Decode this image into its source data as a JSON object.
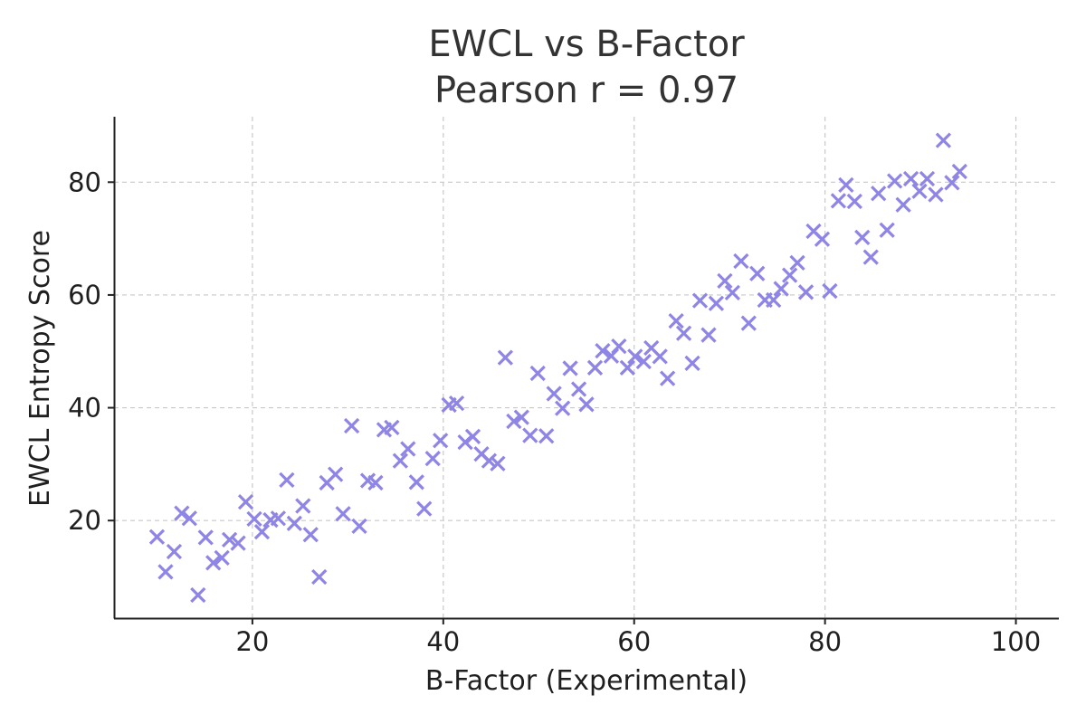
{
  "chart_data": {
    "type": "scatter",
    "title": "EWCL vs B-Factor",
    "subtitle": "Pearson r = 0.97",
    "xlabel": "B-Factor (Experimental)",
    "ylabel": "EWCL Entropy Score",
    "xlim": [
      5.5,
      104.5
    ],
    "ylim": [
      2.7,
      91.6
    ],
    "xticks": [
      20,
      40,
      60,
      80,
      100
    ],
    "yticks": [
      20,
      40,
      60,
      80
    ],
    "grid": true,
    "marker": "x",
    "color": "#8f85e6",
    "points": [
      {
        "x": 10.0,
        "y": 17.1
      },
      {
        "x": 10.9,
        "y": 10.9
      },
      {
        "x": 11.8,
        "y": 14.5
      },
      {
        "x": 12.6,
        "y": 21.3
      },
      {
        "x": 13.4,
        "y": 20.4
      },
      {
        "x": 14.3,
        "y": 6.8
      },
      {
        "x": 15.1,
        "y": 17.0
      },
      {
        "x": 15.9,
        "y": 12.5
      },
      {
        "x": 16.8,
        "y": 13.4
      },
      {
        "x": 17.6,
        "y": 16.6
      },
      {
        "x": 18.5,
        "y": 16.0
      },
      {
        "x": 19.3,
        "y": 23.3
      },
      {
        "x": 20.2,
        "y": 20.3
      },
      {
        "x": 21.0,
        "y": 18.0
      },
      {
        "x": 21.9,
        "y": 20.1
      },
      {
        "x": 22.7,
        "y": 20.4
      },
      {
        "x": 23.6,
        "y": 27.2
      },
      {
        "x": 24.4,
        "y": 19.5
      },
      {
        "x": 25.3,
        "y": 22.6
      },
      {
        "x": 26.1,
        "y": 17.5
      },
      {
        "x": 27.0,
        "y": 10.0
      },
      {
        "x": 27.8,
        "y": 26.7
      },
      {
        "x": 28.7,
        "y": 28.2
      },
      {
        "x": 29.5,
        "y": 21.2
      },
      {
        "x": 30.4,
        "y": 36.8
      },
      {
        "x": 31.2,
        "y": 19.0
      },
      {
        "x": 32.1,
        "y": 27.1
      },
      {
        "x": 32.9,
        "y": 26.7
      },
      {
        "x": 33.8,
        "y": 36.1
      },
      {
        "x": 34.6,
        "y": 36.5
      },
      {
        "x": 35.5,
        "y": 30.6
      },
      {
        "x": 36.3,
        "y": 32.7
      },
      {
        "x": 37.2,
        "y": 26.8
      },
      {
        "x": 38.0,
        "y": 22.1
      },
      {
        "x": 38.9,
        "y": 31.0
      },
      {
        "x": 39.7,
        "y": 34.2
      },
      {
        "x": 40.6,
        "y": 40.5
      },
      {
        "x": 41.4,
        "y": 40.8
      },
      {
        "x": 42.3,
        "y": 33.9
      },
      {
        "x": 43.1,
        "y": 34.9
      },
      {
        "x": 44.0,
        "y": 31.8
      },
      {
        "x": 44.8,
        "y": 30.6
      },
      {
        "x": 45.7,
        "y": 30.1
      },
      {
        "x": 46.5,
        "y": 48.9
      },
      {
        "x": 47.4,
        "y": 37.6
      },
      {
        "x": 48.2,
        "y": 38.3
      },
      {
        "x": 49.1,
        "y": 35.1
      },
      {
        "x": 49.9,
        "y": 46.1
      },
      {
        "x": 50.8,
        "y": 35.0
      },
      {
        "x": 51.6,
        "y": 42.5
      },
      {
        "x": 52.5,
        "y": 39.9
      },
      {
        "x": 53.3,
        "y": 47.0
      },
      {
        "x": 54.2,
        "y": 43.3
      },
      {
        "x": 55.0,
        "y": 40.6
      },
      {
        "x": 55.9,
        "y": 47.1
      },
      {
        "x": 56.7,
        "y": 50.1
      },
      {
        "x": 57.6,
        "y": 49.2
      },
      {
        "x": 58.4,
        "y": 50.9
      },
      {
        "x": 59.3,
        "y": 47.1
      },
      {
        "x": 60.1,
        "y": 49.1
      },
      {
        "x": 61.0,
        "y": 48.2
      },
      {
        "x": 61.8,
        "y": 50.6
      },
      {
        "x": 62.7,
        "y": 49.1
      },
      {
        "x": 63.5,
        "y": 45.2
      },
      {
        "x": 64.4,
        "y": 55.4
      },
      {
        "x": 65.2,
        "y": 53.2
      },
      {
        "x": 66.1,
        "y": 47.9
      },
      {
        "x": 66.9,
        "y": 59.0
      },
      {
        "x": 67.8,
        "y": 52.9
      },
      {
        "x": 68.6,
        "y": 58.5
      },
      {
        "x": 69.5,
        "y": 62.5
      },
      {
        "x": 70.3,
        "y": 60.4
      },
      {
        "x": 71.2,
        "y": 66.0
      },
      {
        "x": 72.0,
        "y": 55.0
      },
      {
        "x": 72.9,
        "y": 63.8
      },
      {
        "x": 73.7,
        "y": 59.1
      },
      {
        "x": 74.6,
        "y": 59.1
      },
      {
        "x": 75.4,
        "y": 61.1
      },
      {
        "x": 76.3,
        "y": 63.5
      },
      {
        "x": 77.1,
        "y": 65.7
      },
      {
        "x": 78.0,
        "y": 60.5
      },
      {
        "x": 78.8,
        "y": 71.3
      },
      {
        "x": 79.7,
        "y": 69.9
      },
      {
        "x": 80.5,
        "y": 60.7
      },
      {
        "x": 81.4,
        "y": 76.7
      },
      {
        "x": 82.2,
        "y": 79.5
      },
      {
        "x": 83.1,
        "y": 76.6
      },
      {
        "x": 83.9,
        "y": 70.2
      },
      {
        "x": 84.8,
        "y": 66.7
      },
      {
        "x": 85.6,
        "y": 78.0
      },
      {
        "x": 86.5,
        "y": 71.5
      },
      {
        "x": 87.3,
        "y": 80.2
      },
      {
        "x": 88.2,
        "y": 76.0
      },
      {
        "x": 89.0,
        "y": 80.6
      },
      {
        "x": 89.9,
        "y": 78.4
      },
      {
        "x": 90.7,
        "y": 80.6
      },
      {
        "x": 91.6,
        "y": 77.8
      },
      {
        "x": 92.4,
        "y": 87.4
      },
      {
        "x": 93.3,
        "y": 79.9
      },
      {
        "x": 94.1,
        "y": 81.9
      }
    ]
  }
}
